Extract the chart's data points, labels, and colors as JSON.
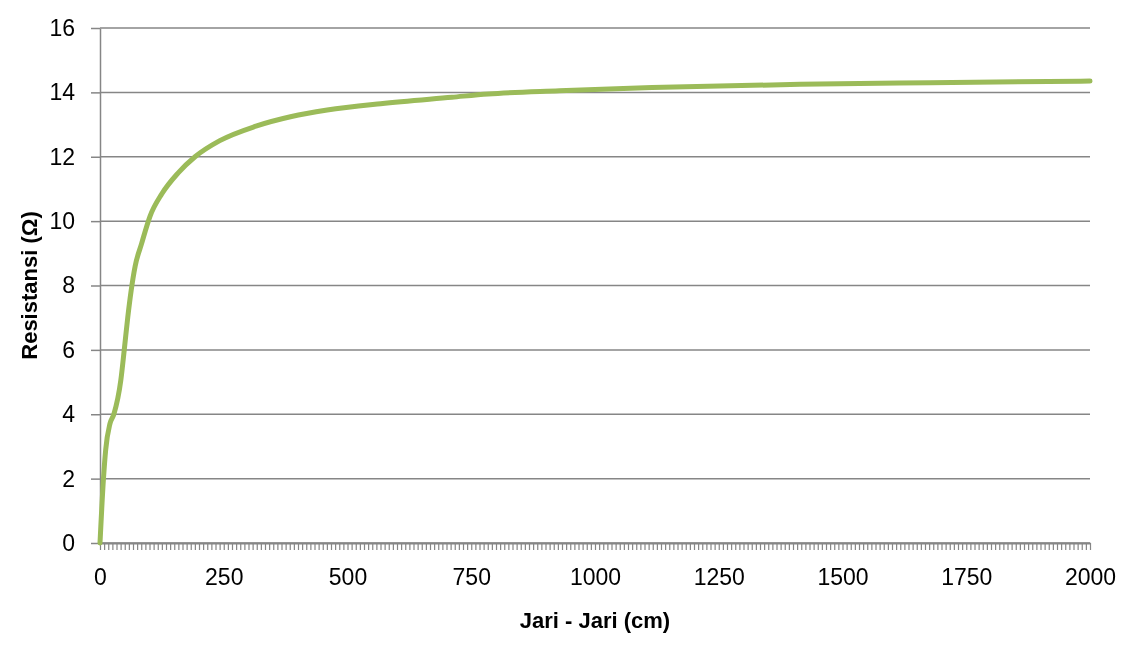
{
  "chart_data": {
    "type": "line",
    "xlabel": "Jari - Jari (cm)",
    "ylabel": "Resistansi (Ω)",
    "series": [
      {
        "color": "#9bbb59",
        "x": [
          0,
          7,
          11.5,
          20,
          28,
          42,
          49,
          56,
          63,
          71,
          84,
          101,
          125,
          158,
          192,
          242,
          315,
          387,
          459,
          567,
          711,
          784,
          928,
          1115,
          1414,
          1677,
          2000
        ],
        "values": [
          0,
          2.0,
          2.9,
          3.7,
          4.0,
          5.05,
          6.0,
          7.0,
          7.85,
          8.6,
          9.3,
          10.15,
          10.85,
          11.5,
          12.0,
          12.5,
          12.95,
          13.25,
          13.45,
          13.65,
          13.85,
          13.95,
          14.05,
          14.15,
          14.25,
          14.3,
          14.35
        ]
      }
    ],
    "xlim": [
      0,
      2000
    ],
    "ylim": [
      0,
      16
    ],
    "yticks": [
      0,
      2,
      4,
      6,
      8,
      10,
      12,
      14,
      16
    ],
    "grid": "y",
    "xticks": [
      0,
      {
        "value": 8.33,
        "label": null
      },
      {
        "value": 16.67,
        "label": null
      },
      {
        "value": 25,
        "label": null
      },
      {
        "value": 33.33,
        "label": null
      },
      {
        "value": 41.67,
        "label": null
      },
      {
        "value": 50,
        "label": null
      },
      {
        "value": 58.33,
        "label": null
      },
      {
        "value": 66.67,
        "label": null
      },
      {
        "value": 75,
        "label": null
      },
      {
        "value": 83.33,
        "label": null
      },
      {
        "value": 91.67,
        "label": null
      },
      {
        "value": 100,
        "label": null
      },
      {
        "value": 108.33,
        "label": null
      },
      {
        "value": 116.67,
        "label": null
      },
      {
        "value": 125,
        "label": null
      },
      {
        "value": 133.33,
        "label": null
      },
      {
        "value": 141.67,
        "label": null
      },
      {
        "value": 150,
        "label": null
      },
      {
        "value": 158.33,
        "label": null
      },
      {
        "value": 166.67,
        "label": null
      },
      {
        "value": 175,
        "label": null
      },
      {
        "value": 183.33,
        "label": null
      },
      {
        "value": 191.67,
        "label": null
      },
      {
        "value": 200,
        "label": null
      },
      {
        "value": 208.33,
        "label": null
      },
      {
        "value": 216.67,
        "label": null
      },
      {
        "value": 225,
        "label": null
      },
      {
        "value": 233.33,
        "label": null
      },
      {
        "value": 241.67,
        "label": null
      },
      250,
      {
        "value": 258.33,
        "label": null
      },
      {
        "value": 266.67,
        "label": null
      },
      {
        "value": 275,
        "label": null
      },
      {
        "value": 283.33,
        "label": null
      },
      {
        "value": 291.67,
        "label": null
      },
      {
        "value": 300,
        "label": null
      },
      {
        "value": 308.33,
        "label": null
      },
      {
        "value": 316.67,
        "label": null
      },
      {
        "value": 325,
        "label": null
      },
      {
        "value": 333.33,
        "label": null
      },
      {
        "value": 341.67,
        "label": null
      },
      {
        "value": 350,
        "label": null
      },
      {
        "value": 358.33,
        "label": null
      },
      {
        "value": 366.67,
        "label": null
      },
      {
        "value": 375,
        "label": null
      },
      {
        "value": 383.33,
        "label": null
      },
      {
        "value": 391.67,
        "label": null
      },
      {
        "value": 400,
        "label": null
      },
      {
        "value": 408.33,
        "label": null
      },
      {
        "value": 416.67,
        "label": null
      },
      {
        "value": 425,
        "label": null
      },
      {
        "value": 433.33,
        "label": null
      },
      {
        "value": 441.67,
        "label": null
      },
      {
        "value": 450,
        "label": null
      },
      {
        "value": 458.33,
        "label": null
      },
      {
        "value": 466.67,
        "label": null
      },
      {
        "value": 475,
        "label": null
      },
      {
        "value": 483.33,
        "label": null
      },
      {
        "value": 491.67,
        "label": null
      },
      500,
      {
        "value": 508.33,
        "label": null
      },
      {
        "value": 516.67,
        "label": null
      },
      {
        "value": 525,
        "label": null
      },
      {
        "value": 533.33,
        "label": null
      },
      {
        "value": 541.67,
        "label": null
      },
      {
        "value": 550,
        "label": null
      },
      {
        "value": 558.33,
        "label": null
      },
      {
        "value": 566.67,
        "label": null
      },
      {
        "value": 575,
        "label": null
      },
      {
        "value": 583.33,
        "label": null
      },
      {
        "value": 591.67,
        "label": null
      },
      {
        "value": 600,
        "label": null
      },
      {
        "value": 608.33,
        "label": null
      },
      {
        "value": 616.67,
        "label": null
      },
      {
        "value": 625,
        "label": null
      },
      {
        "value": 633.33,
        "label": null
      },
      {
        "value": 641.67,
        "label": null
      },
      {
        "value": 650,
        "label": null
      },
      {
        "value": 658.33,
        "label": null
      },
      {
        "value": 666.67,
        "label": null
      },
      {
        "value": 675,
        "label": null
      },
      {
        "value": 683.33,
        "label": null
      },
      {
        "value": 691.67,
        "label": null
      },
      {
        "value": 700,
        "label": null
      },
      {
        "value": 708.33,
        "label": null
      },
      {
        "value": 716.67,
        "label": null
      },
      {
        "value": 725,
        "label": null
      },
      {
        "value": 733.33,
        "label": null
      },
      {
        "value": 741.67,
        "label": null
      },
      750,
      {
        "value": 758.33,
        "label": null
      },
      {
        "value": 766.67,
        "label": null
      },
      {
        "value": 775,
        "label": null
      },
      {
        "value": 783.33,
        "label": null
      },
      {
        "value": 791.67,
        "label": null
      },
      {
        "value": 800,
        "label": null
      },
      {
        "value": 808.33,
        "label": null
      },
      {
        "value": 816.67,
        "label": null
      },
      {
        "value": 825,
        "label": null
      },
      {
        "value": 833.33,
        "label": null
      },
      {
        "value": 841.67,
        "label": null
      },
      {
        "value": 850,
        "label": null
      },
      {
        "value": 858.33,
        "label": null
      },
      {
        "value": 866.67,
        "label": null
      },
      {
        "value": 875,
        "label": null
      },
      {
        "value": 883.33,
        "label": null
      },
      {
        "value": 891.67,
        "label": null
      },
      {
        "value": 900,
        "label": null
      },
      {
        "value": 908.33,
        "label": null
      },
      {
        "value": 916.67,
        "label": null
      },
      {
        "value": 925,
        "label": null
      },
      {
        "value": 933.33,
        "label": null
      },
      {
        "value": 941.67,
        "label": null
      },
      {
        "value": 950,
        "label": null
      },
      {
        "value": 958.33,
        "label": null
      },
      {
        "value": 966.67,
        "label": null
      },
      {
        "value": 975,
        "label": null
      },
      {
        "value": 983.33,
        "label": null
      },
      {
        "value": 991.67,
        "label": null
      },
      1000,
      {
        "value": 1008.33,
        "label": null
      },
      {
        "value": 1016.67,
        "label": null
      },
      {
        "value": 1025,
        "label": null
      },
      {
        "value": 1033.33,
        "label": null
      },
      {
        "value": 1041.67,
        "label": null
      },
      {
        "value": 1050,
        "label": null
      },
      {
        "value": 1058.33,
        "label": null
      },
      {
        "value": 1066.67,
        "label": null
      },
      {
        "value": 1075,
        "label": null
      },
      {
        "value": 1083.33,
        "label": null
      },
      {
        "value": 1091.67,
        "label": null
      },
      {
        "value": 1100,
        "label": null
      },
      {
        "value": 1108.33,
        "label": null
      },
      {
        "value": 1116.67,
        "label": null
      },
      {
        "value": 1125,
        "label": null
      },
      {
        "value": 1133.33,
        "label": null
      },
      {
        "value": 1141.67,
        "label": null
      },
      {
        "value": 1150,
        "label": null
      },
      {
        "value": 1158.33,
        "label": null
      },
      {
        "value": 1166.67,
        "label": null
      },
      {
        "value": 1175,
        "label": null
      },
      {
        "value": 1183.33,
        "label": null
      },
      {
        "value": 1191.67,
        "label": null
      },
      {
        "value": 1200,
        "label": null
      },
      {
        "value": 1208.33,
        "label": null
      },
      {
        "value": 1216.67,
        "label": null
      },
      {
        "value": 1225,
        "label": null
      },
      {
        "value": 1233.33,
        "label": null
      },
      {
        "value": 1241.67,
        "label": null
      },
      1250,
      {
        "value": 1258.33,
        "label": null
      },
      {
        "value": 1266.67,
        "label": null
      },
      {
        "value": 1275,
        "label": null
      },
      {
        "value": 1283.33,
        "label": null
      },
      {
        "value": 1291.67,
        "label": null
      },
      {
        "value": 1300,
        "label": null
      },
      {
        "value": 1308.33,
        "label": null
      },
      {
        "value": 1316.67,
        "label": null
      },
      {
        "value": 1325,
        "label": null
      },
      {
        "value": 1333.33,
        "label": null
      },
      {
        "value": 1341.67,
        "label": null
      },
      {
        "value": 1350,
        "label": null
      },
      {
        "value": 1358.33,
        "label": null
      },
      {
        "value": 1366.67,
        "label": null
      },
      {
        "value": 1375,
        "label": null
      },
      {
        "value": 1383.33,
        "label": null
      },
      {
        "value": 1391.67,
        "label": null
      },
      {
        "value": 1400,
        "label": null
      },
      {
        "value": 1408.33,
        "label": null
      },
      {
        "value": 1416.67,
        "label": null
      },
      {
        "value": 1425,
        "label": null
      },
      {
        "value": 1433.33,
        "label": null
      },
      {
        "value": 1441.67,
        "label": null
      },
      {
        "value": 1450,
        "label": null
      },
      {
        "value": 1458.33,
        "label": null
      },
      {
        "value": 1466.67,
        "label": null
      },
      {
        "value": 1475,
        "label": null
      },
      {
        "value": 1483.33,
        "label": null
      },
      {
        "value": 1491.67,
        "label": null
      },
      1500,
      {
        "value": 1508.33,
        "label": null
      },
      {
        "value": 1516.67,
        "label": null
      },
      {
        "value": 1525,
        "label": null
      },
      {
        "value": 1533.33,
        "label": null
      },
      {
        "value": 1541.67,
        "label": null
      },
      {
        "value": 1550,
        "label": null
      },
      {
        "value": 1558.33,
        "label": null
      },
      {
        "value": 1566.67,
        "label": null
      },
      {
        "value": 1575,
        "label": null
      },
      {
        "value": 1583.33,
        "label": null
      },
      {
        "value": 1591.67,
        "label": null
      },
      {
        "value": 1600,
        "label": null
      },
      {
        "value": 1608.33,
        "label": null
      },
      {
        "value": 1616.67,
        "label": null
      },
      {
        "value": 1625,
        "label": null
      },
      {
        "value": 1633.33,
        "label": null
      },
      {
        "value": 1641.67,
        "label": null
      },
      {
        "value": 1650,
        "label": null
      },
      {
        "value": 1658.33,
        "label": null
      },
      {
        "value": 1666.67,
        "label": null
      },
      {
        "value": 1675,
        "label": null
      },
      {
        "value": 1683.33,
        "label": null
      },
      {
        "value": 1691.67,
        "label": null
      },
      {
        "value": 1700,
        "label": null
      },
      {
        "value": 1708.33,
        "label": null
      },
      {
        "value": 1716.67,
        "label": null
      },
      {
        "value": 1725,
        "label": null
      },
      {
        "value": 1733.33,
        "label": null
      },
      {
        "value": 1741.67,
        "label": null
      },
      1750,
      {
        "value": 1758.33,
        "label": null
      },
      {
        "value": 1766.67,
        "label": null
      },
      {
        "value": 1775,
        "label": null
      },
      {
        "value": 1783.33,
        "label": null
      },
      {
        "value": 1791.67,
        "label": null
      },
      {
        "value": 1800,
        "label": null
      },
      {
        "value": 1808.33,
        "label": null
      },
      {
        "value": 1816.67,
        "label": null
      },
      {
        "value": 1825,
        "label": null
      },
      {
        "value": 1833.33,
        "label": null
      },
      {
        "value": 1841.67,
        "label": null
      },
      {
        "value": 1850,
        "label": null
      },
      {
        "value": 1858.33,
        "label": null
      },
      {
        "value": 1866.67,
        "label": null
      },
      {
        "value": 1875,
        "label": null
      },
      {
        "value": 1883.33,
        "label": null
      },
      {
        "value": 1891.67,
        "label": null
      },
      {
        "value": 1900,
        "label": null
      },
      {
        "value": 1908.33,
        "label": null
      },
      {
        "value": 1916.67,
        "label": null
      },
      {
        "value": 1925,
        "label": null
      },
      {
        "value": 1933.33,
        "label": null
      },
      {
        "value": 1941.67,
        "label": null
      },
      {
        "value": 1950,
        "label": null
      },
      {
        "value": 1958.33,
        "label": null
      },
      {
        "value": 1966.67,
        "label": null
      },
      {
        "value": 1975,
        "label": null
      },
      {
        "value": 1983.33,
        "label": null
      },
      {
        "value": 1991.67,
        "label": null
      },
      2000
    ]
  }
}
